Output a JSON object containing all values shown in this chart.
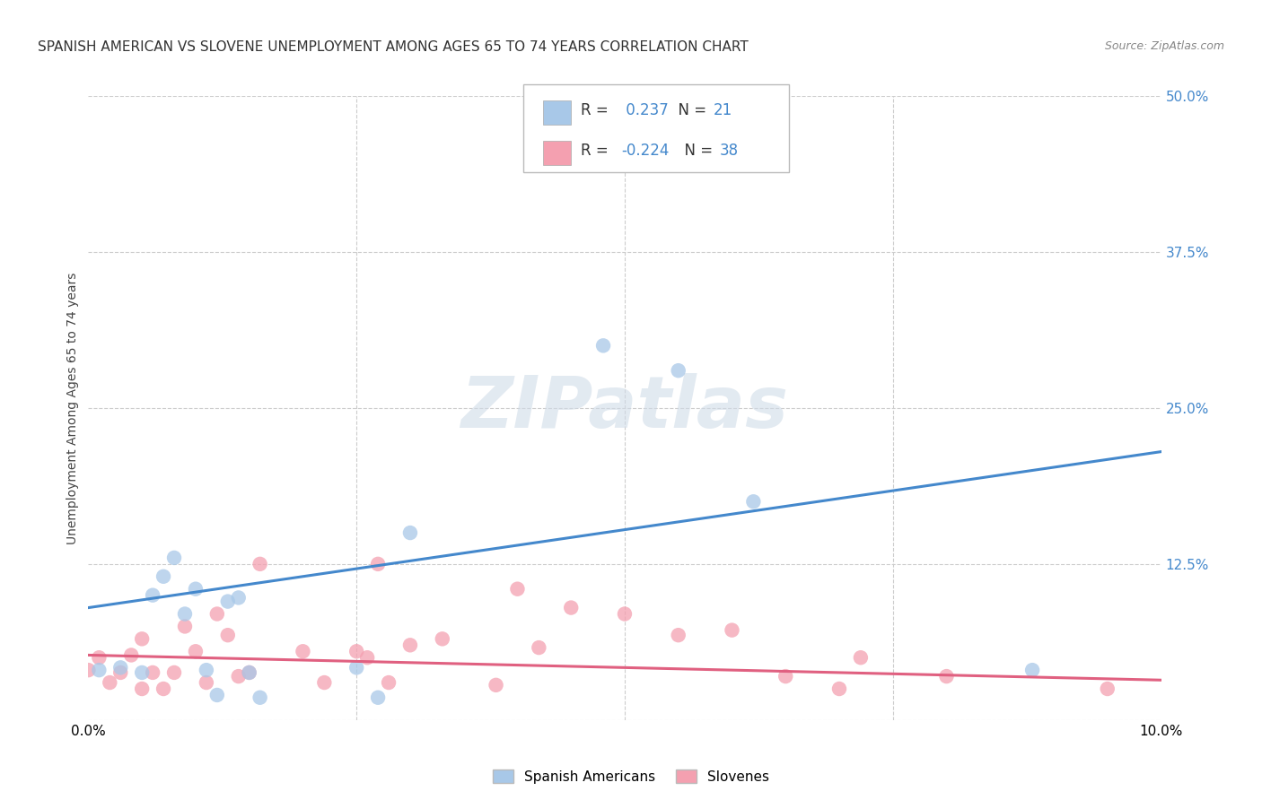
{
  "title": "SPANISH AMERICAN VS SLOVENE UNEMPLOYMENT AMONG AGES 65 TO 74 YEARS CORRELATION CHART",
  "source": "Source: ZipAtlas.com",
  "ylabel": "Unemployment Among Ages 65 to 74 years",
  "xmin": 0.0,
  "xmax": 0.1,
  "ymin": 0.0,
  "ymax": 0.5,
  "yticks": [
    0.0,
    0.125,
    0.25,
    0.375,
    0.5
  ],
  "ytick_labels": [
    "",
    "12.5%",
    "25.0%",
    "37.5%",
    "50.0%"
  ],
  "xticks": [
    0.0,
    0.025,
    0.05,
    0.075,
    0.1
  ],
  "xtick_labels": [
    "0.0%",
    "",
    "",
    "",
    "10.0%"
  ],
  "blue_R": 0.237,
  "blue_N": 21,
  "pink_R": -0.224,
  "pink_N": 38,
  "blue_color": "#a8c8e8",
  "pink_color": "#f4a0b0",
  "blue_line_color": "#4488cc",
  "pink_line_color": "#e06080",
  "watermark_color": "#d0dce8",
  "grid_color": "#cccccc",
  "bg_color": "#ffffff",
  "title_fontsize": 11,
  "label_fontsize": 10,
  "tick_fontsize": 11,
  "blue_scatter_x": [
    0.001,
    0.003,
    0.005,
    0.006,
    0.007,
    0.008,
    0.009,
    0.01,
    0.011,
    0.012,
    0.013,
    0.014,
    0.015,
    0.016,
    0.025,
    0.027,
    0.03,
    0.048,
    0.055,
    0.062,
    0.088
  ],
  "blue_scatter_y": [
    0.04,
    0.042,
    0.038,
    0.1,
    0.115,
    0.13,
    0.085,
    0.105,
    0.04,
    0.02,
    0.095,
    0.098,
    0.038,
    0.018,
    0.042,
    0.018,
    0.15,
    0.3,
    0.28,
    0.175,
    0.04
  ],
  "pink_scatter_x": [
    0.0,
    0.001,
    0.002,
    0.003,
    0.004,
    0.005,
    0.005,
    0.006,
    0.007,
    0.008,
    0.009,
    0.01,
    0.011,
    0.012,
    0.013,
    0.014,
    0.015,
    0.016,
    0.02,
    0.022,
    0.025,
    0.026,
    0.027,
    0.028,
    0.03,
    0.033,
    0.038,
    0.04,
    0.042,
    0.045,
    0.05,
    0.055,
    0.06,
    0.065,
    0.07,
    0.072,
    0.08,
    0.095
  ],
  "pink_scatter_y": [
    0.04,
    0.05,
    0.03,
    0.038,
    0.052,
    0.025,
    0.065,
    0.038,
    0.025,
    0.038,
    0.075,
    0.055,
    0.03,
    0.085,
    0.068,
    0.035,
    0.038,
    0.125,
    0.055,
    0.03,
    0.055,
    0.05,
    0.125,
    0.03,
    0.06,
    0.065,
    0.028,
    0.105,
    0.058,
    0.09,
    0.085,
    0.068,
    0.072,
    0.035,
    0.025,
    0.05,
    0.035,
    0.025
  ],
  "blue_line_x0": 0.0,
  "blue_line_y0": 0.09,
  "blue_line_x1": 0.1,
  "blue_line_y1": 0.215,
  "pink_line_x0": 0.0,
  "pink_line_y0": 0.052,
  "pink_line_x1": 0.1,
  "pink_line_y1": 0.032
}
